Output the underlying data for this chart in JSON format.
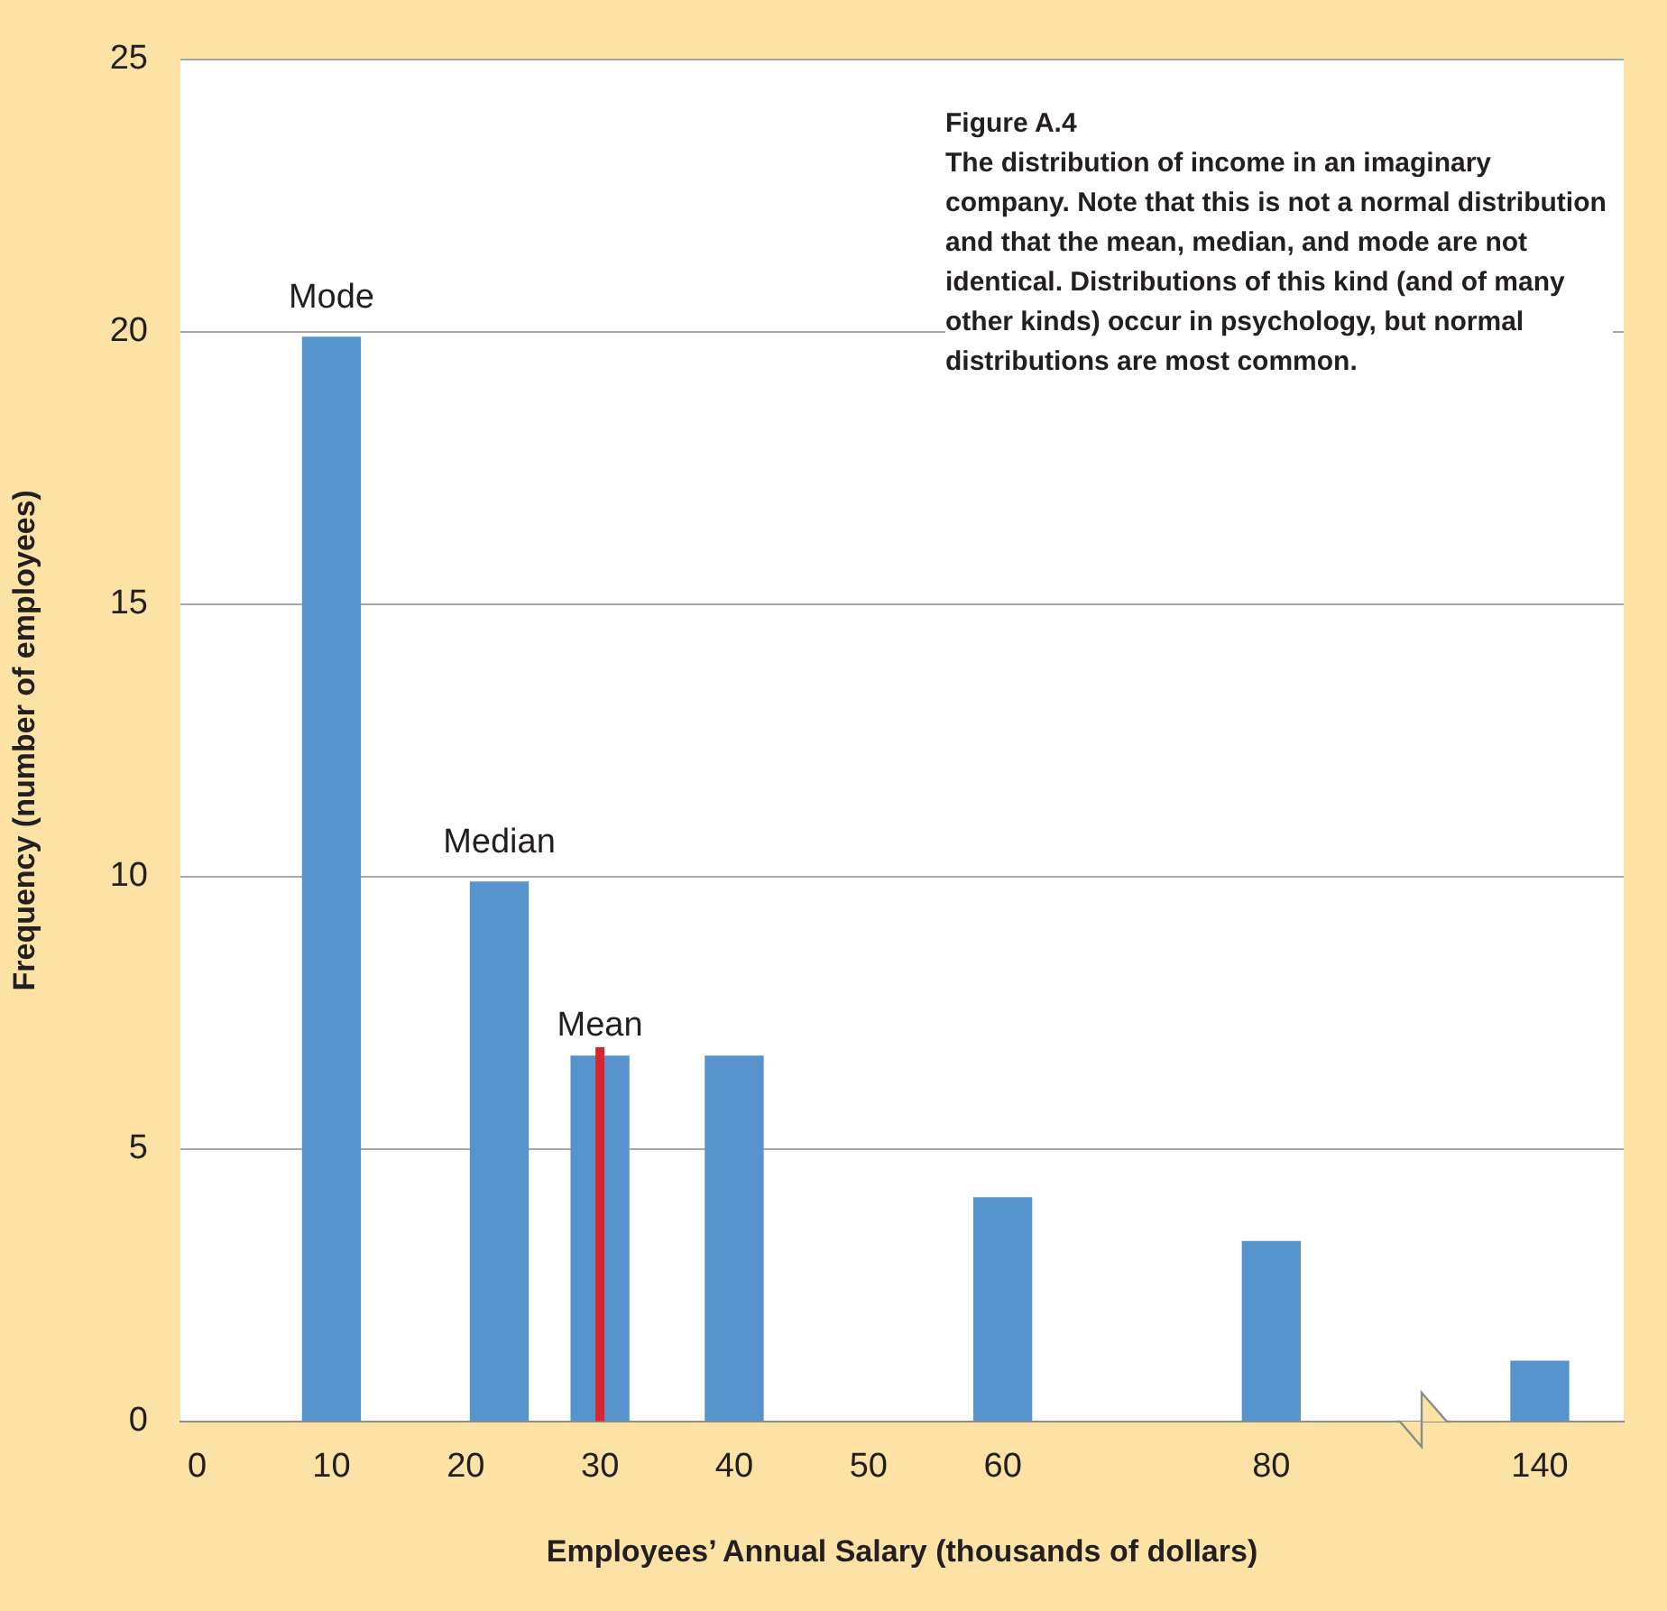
{
  "chart_data": {
    "type": "bar",
    "title": "Figure A.4",
    "subtitle": "The distribution of income in an imaginary company. Note that this is not a normal distribution and that the mean, median, and mode are not identical. Distributions of this kind (and of many other kinds) occur in psychology, but normal distributions are most common.",
    "xlabel": "Employees’ Annual Salary (thousands of dollars)",
    "ylabel": "Frequency (number of employees)",
    "categories": [
      "0",
      null,
      null,
      null,
      "10",
      null,
      null,
      null,
      "20",
      null,
      null,
      null,
      "30",
      null,
      null,
      null,
      "40",
      null,
      null,
      null,
      "50",
      null,
      null,
      null,
      "60",
      null,
      null,
      null,
      null,
      null,
      null,
      null,
      "80",
      null,
      null,
      null,
      null,
      null,
      null,
      null,
      "140",
      null,
      null
    ],
    "values": [
      null,
      null,
      null,
      null,
      19.9,
      null,
      null,
      null,
      null,
      9.9,
      null,
      null,
      6.7,
      null,
      null,
      null,
      6.7,
      null,
      null,
      null,
      null,
      null,
      null,
      null,
      4.1,
      null,
      null,
      null,
      null,
      null,
      null,
      null,
      3.3,
      null,
      null,
      null,
      null,
      null,
      null,
      null,
      1.1,
      null,
      null
    ],
    "color": "#5793cd",
    "ylim": [
      0,
      25
    ],
    "yticks": [
      0,
      5,
      10,
      15,
      20,
      25
    ],
    "grid": "y",
    "legend": false,
    "ref_lines": [
      {
        "axis": "x",
        "value": "30",
        "label": "Mean",
        "color": "#d9262e"
      }
    ],
    "annotations": [
      {
        "text": "Mode",
        "x": "10",
        "y": 19.9
      },
      {
        "text": "Median",
        "y": 9.9
      }
    ]
  }
}
